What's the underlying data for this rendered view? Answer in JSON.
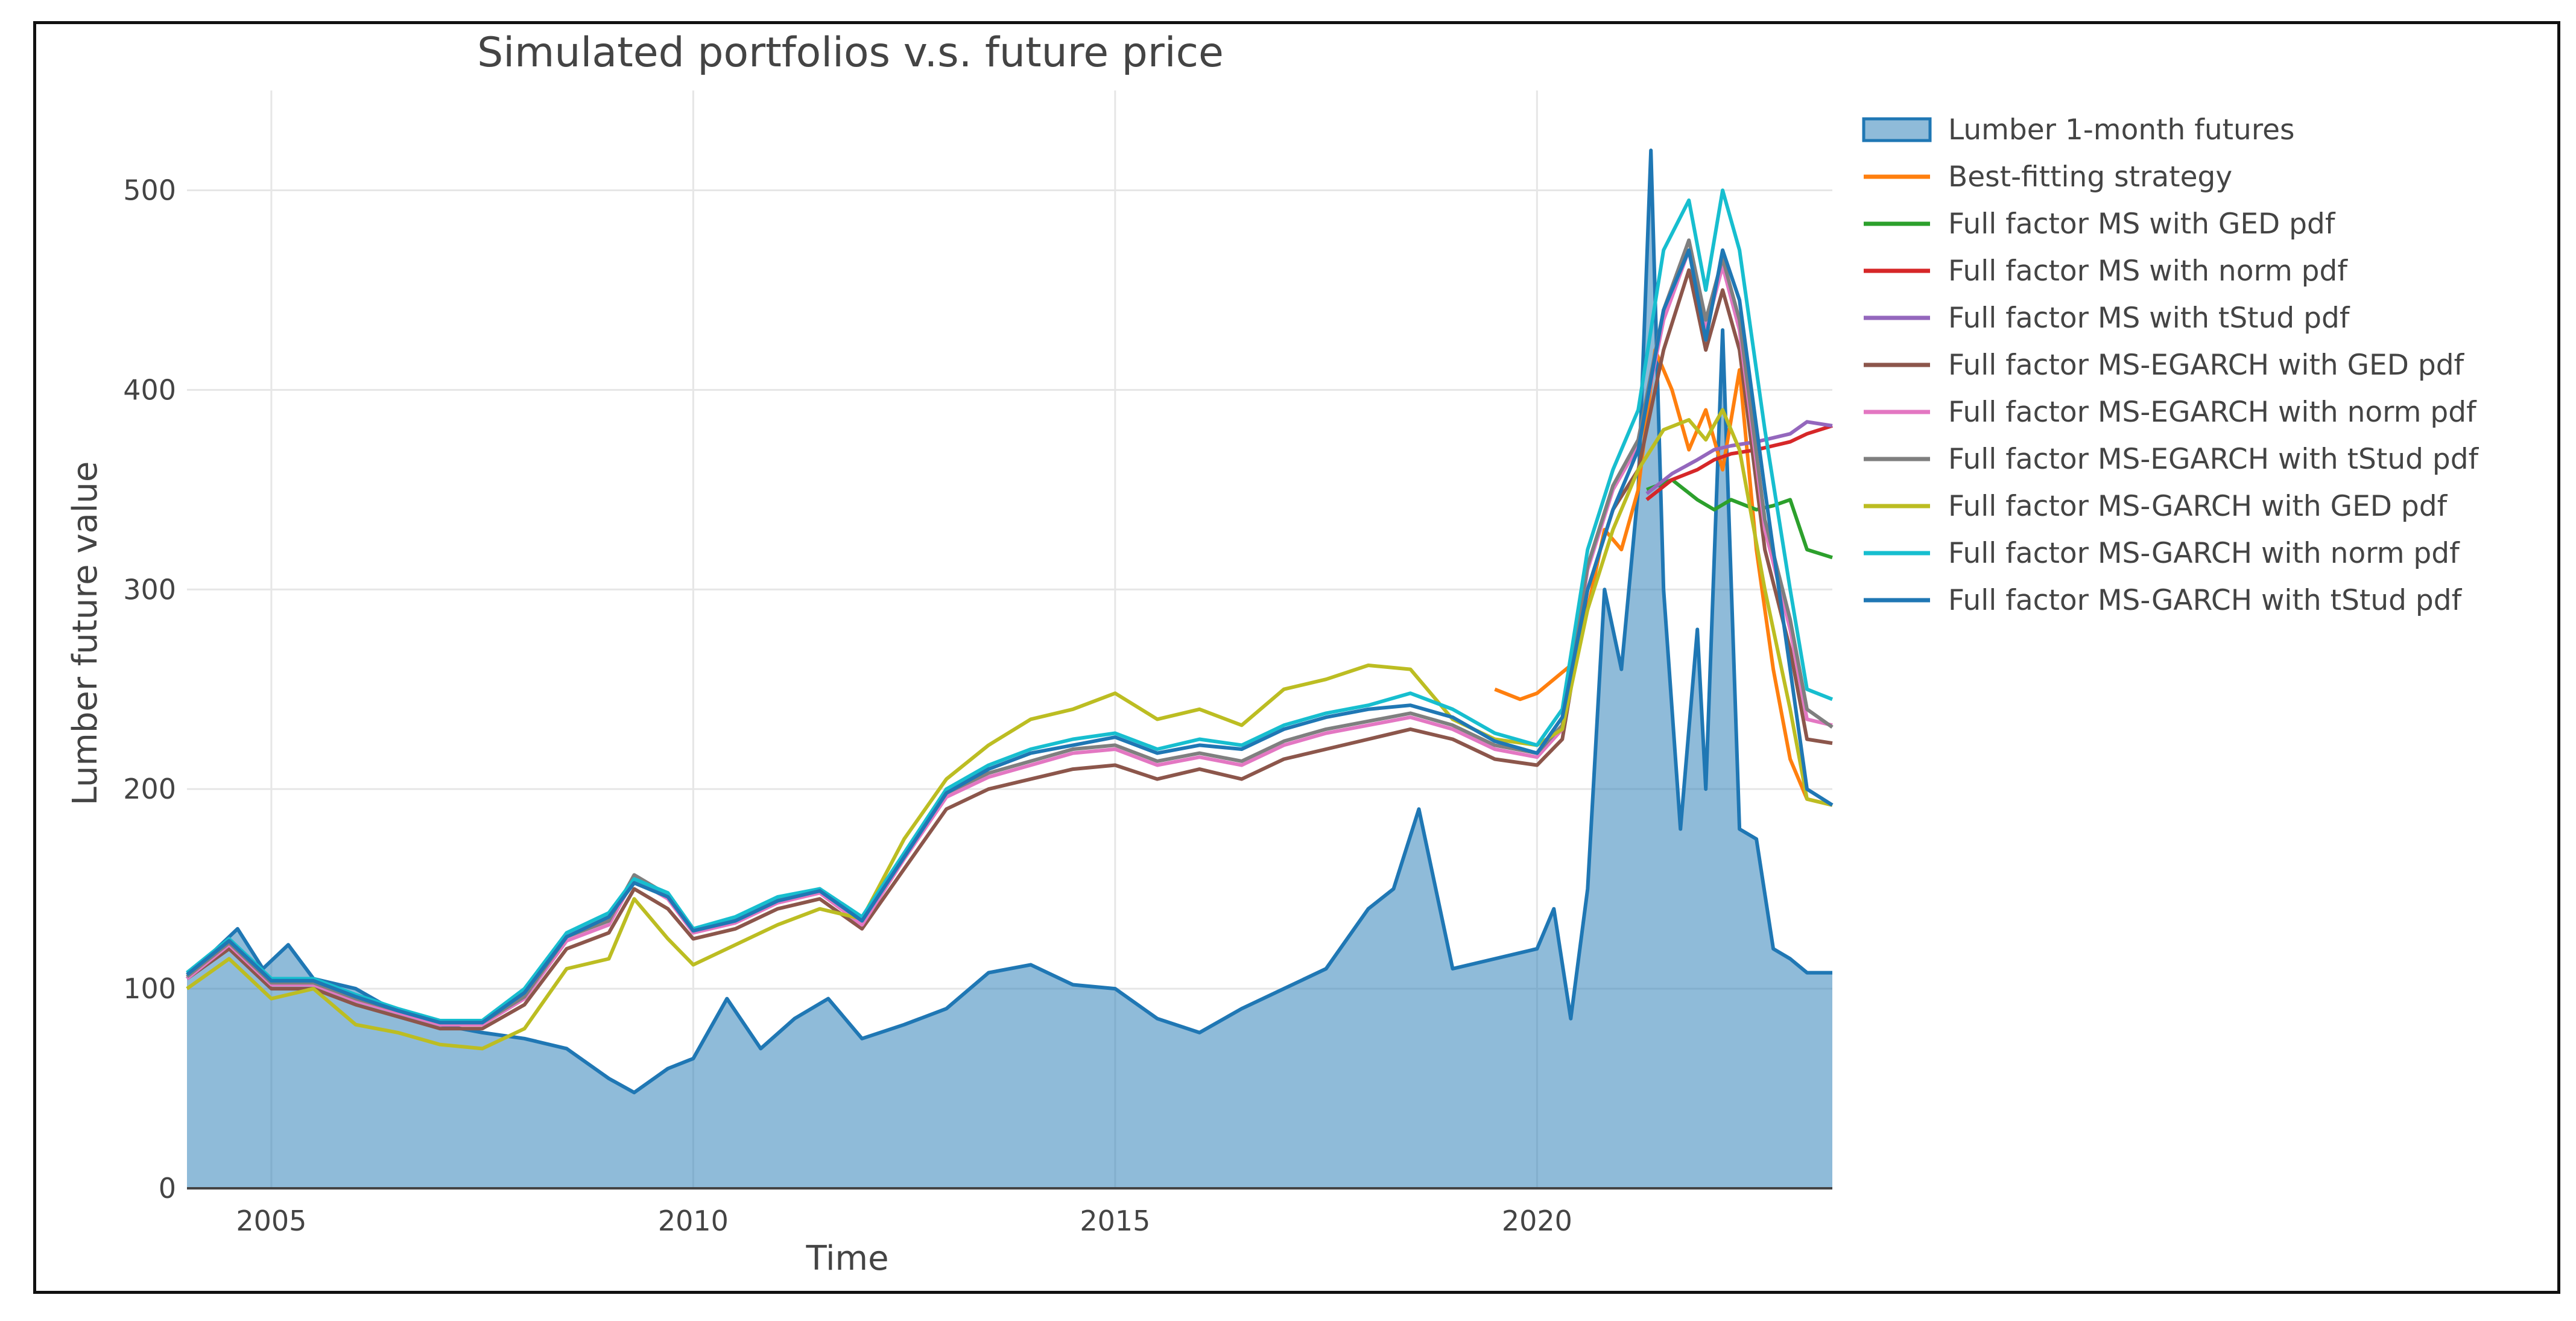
{
  "chart_data": {
    "type": "line",
    "title": "Simulated portfolios v.s. future price",
    "xlabel": "Time",
    "ylabel": "Lumber future value",
    "xlim": [
      2004.0,
      2023.5
    ],
    "ylim": [
      0,
      550
    ],
    "xticks": [
      2005,
      2010,
      2015,
      2020
    ],
    "yticks": [
      0,
      100,
      200,
      300,
      400,
      500
    ],
    "grid": true,
    "legend_position": "right",
    "series": [
      {
        "name": "Lumber 1-month futures",
        "color": "#1f77b4",
        "style": "area",
        "x": [
          2004.0,
          2004.3,
          2004.6,
          2004.9,
          2005.2,
          2005.5,
          2006.0,
          2006.5,
          2007.0,
          2007.5,
          2008.0,
          2008.5,
          2009.0,
          2009.3,
          2009.7,
          2010.0,
          2010.4,
          2010.8,
          2011.2,
          2011.6,
          2012.0,
          2012.5,
          2013.0,
          2013.5,
          2014.0,
          2014.5,
          2015.0,
          2015.5,
          2016.0,
          2016.5,
          2017.0,
          2017.5,
          2018.0,
          2018.3,
          2018.6,
          2019.0,
          2019.5,
          2020.0,
          2020.2,
          2020.4,
          2020.6,
          2020.8,
          2021.0,
          2021.2,
          2021.35,
          2021.5,
          2021.7,
          2021.9,
          2022.0,
          2022.2,
          2022.4,
          2022.6,
          2022.8,
          2023.0,
          2023.2,
          2023.5
        ],
        "values": [
          105,
          118,
          130,
          110,
          122,
          105,
          100,
          88,
          82,
          78,
          75,
          70,
          55,
          48,
          60,
          65,
          95,
          70,
          85,
          95,
          75,
          82,
          90,
          108,
          112,
          102,
          100,
          85,
          78,
          90,
          100,
          110,
          140,
          150,
          190,
          110,
          115,
          120,
          140,
          85,
          150,
          300,
          260,
          350,
          520,
          300,
          180,
          280,
          200,
          430,
          180,
          175,
          120,
          115,
          108,
          108
        ]
      },
      {
        "name": "Best-fitting strategy",
        "color": "#ff7f0e",
        "x": [
          2019.5,
          2019.8,
          2020.0,
          2020.2,
          2020.4,
          2020.6,
          2020.8,
          2021.0,
          2021.2,
          2021.4,
          2021.6,
          2021.8,
          2022.0,
          2022.2,
          2022.4,
          2022.6,
          2022.8,
          2023.0,
          2023.2,
          2023.5
        ],
        "values": [
          250,
          245,
          248,
          255,
          262,
          290,
          330,
          320,
          350,
          420,
          400,
          370,
          390,
          360,
          410,
          320,
          260,
          215,
          195,
          192
        ]
      },
      {
        "name": "Full factor MS with GED pdf",
        "color": "#2ca02c",
        "x": [
          2021.3,
          2021.6,
          2021.9,
          2022.1,
          2022.3,
          2022.6,
          2022.8,
          2023.0,
          2023.2,
          2023.5
        ],
        "values": [
          350,
          355,
          345,
          340,
          345,
          340,
          342,
          345,
          320,
          316
        ]
      },
      {
        "name": "Full factor MS with norm pdf",
        "color": "#d62728",
        "x": [
          2021.3,
          2021.6,
          2021.9,
          2022.1,
          2022.3,
          2022.6,
          2022.8,
          2023.0,
          2023.2,
          2023.5
        ],
        "values": [
          345,
          355,
          360,
          365,
          368,
          370,
          372,
          374,
          378,
          382
        ]
      },
      {
        "name": "Full factor MS with tStud pdf",
        "color": "#9467bd",
        "x": [
          2021.3,
          2021.6,
          2021.9,
          2022.1,
          2022.3,
          2022.6,
          2022.8,
          2023.0,
          2023.2,
          2023.5
        ],
        "values": [
          348,
          358,
          365,
          370,
          372,
          374,
          376,
          378,
          384,
          382
        ]
      },
      {
        "name": "Full factor MS-EGARCH with GED pdf",
        "color": "#8c564b",
        "x": [
          2004.0,
          2004.5,
          2005.0,
          2005.5,
          2006.0,
          2006.5,
          2007.0,
          2007.5,
          2008.0,
          2008.5,
          2009.0,
          2009.3,
          2009.7,
          2010.0,
          2010.5,
          2011.0,
          2011.5,
          2012.0,
          2012.5,
          2013.0,
          2013.5,
          2014.0,
          2014.5,
          2015.0,
          2015.5,
          2016.0,
          2016.5,
          2017.0,
          2017.5,
          2018.0,
          2018.5,
          2019.0,
          2019.5,
          2020.0,
          2020.3,
          2020.6,
          2020.9,
          2021.2,
          2021.5,
          2021.8,
          2022.0,
          2022.2,
          2022.4,
          2022.7,
          2023.0,
          2023.2,
          2023.5
        ],
        "values": [
          105,
          120,
          100,
          100,
          92,
          86,
          80,
          80,
          92,
          120,
          128,
          150,
          140,
          125,
          130,
          140,
          145,
          130,
          160,
          190,
          200,
          205,
          210,
          212,
          205,
          210,
          205,
          215,
          220,
          225,
          230,
          225,
          215,
          212,
          225,
          300,
          340,
          360,
          420,
          460,
          420,
          450,
          420,
          320,
          270,
          225,
          223
        ]
      },
      {
        "name": "Full factor MS-EGARCH with norm pdf",
        "color": "#e377c2",
        "x": [
          2004.0,
          2004.5,
          2005.0,
          2005.5,
          2006.0,
          2006.5,
          2007.0,
          2007.5,
          2008.0,
          2008.5,
          2009.0,
          2009.3,
          2009.7,
          2010.0,
          2010.5,
          2011.0,
          2011.5,
          2012.0,
          2012.5,
          2013.0,
          2013.5,
          2014.0,
          2014.5,
          2015.0,
          2015.5,
          2016.0,
          2016.5,
          2017.0,
          2017.5,
          2018.0,
          2018.5,
          2019.0,
          2019.5,
          2020.0,
          2020.3,
          2020.6,
          2020.9,
          2021.2,
          2021.5,
          2021.8,
          2022.0,
          2022.2,
          2022.4,
          2022.7,
          2023.0,
          2023.2,
          2023.5
        ],
        "values": [
          105,
          122,
          102,
          102,
          94,
          88,
          82,
          82,
          95,
          124,
          132,
          155,
          145,
          128,
          133,
          143,
          148,
          132,
          165,
          196,
          206,
          212,
          218,
          220,
          212,
          216,
          212,
          222,
          228,
          232,
          236,
          230,
          220,
          216,
          230,
          310,
          350,
          372,
          435,
          470,
          430,
          462,
          430,
          330,
          280,
          235,
          232
        ]
      },
      {
        "name": "Full factor MS-EGARCH with tStud pdf",
        "color": "#7f7f7f",
        "x": [
          2004.0,
          2004.5,
          2005.0,
          2005.5,
          2006.0,
          2006.5,
          2007.0,
          2007.5,
          2008.0,
          2008.5,
          2009.0,
          2009.3,
          2009.7,
          2010.0,
          2010.5,
          2011.0,
          2011.5,
          2012.0,
          2012.5,
          2013.0,
          2013.5,
          2014.0,
          2014.5,
          2015.0,
          2015.5,
          2016.0,
          2016.5,
          2017.0,
          2017.5,
          2018.0,
          2018.5,
          2019.0,
          2019.5,
          2020.0,
          2020.3,
          2020.6,
          2020.9,
          2021.2,
          2021.5,
          2021.8,
          2022.0,
          2022.2,
          2022.4,
          2022.7,
          2023.0,
          2023.2,
          2023.5
        ],
        "values": [
          106,
          123,
          103,
          103,
          95,
          89,
          83,
          83,
          96,
          126,
          134,
          157,
          147,
          130,
          135,
          145,
          150,
          134,
          167,
          198,
          208,
          214,
          220,
          222,
          214,
          218,
          214,
          224,
          230,
          234,
          238,
          232,
          222,
          218,
          232,
          312,
          352,
          375,
          440,
          475,
          435,
          466,
          435,
          335,
          285,
          240,
          231
        ]
      },
      {
        "name": "Full factor MS-GARCH with GED pdf",
        "color": "#bcbd22",
        "x": [
          2004.0,
          2004.5,
          2005.0,
          2005.5,
          2006.0,
          2006.5,
          2007.0,
          2007.5,
          2008.0,
          2008.5,
          2009.0,
          2009.3,
          2009.7,
          2010.0,
          2010.5,
          2011.0,
          2011.5,
          2012.0,
          2012.5,
          2013.0,
          2013.5,
          2014.0,
          2014.5,
          2015.0,
          2015.5,
          2016.0,
          2016.5,
          2017.0,
          2017.5,
          2018.0,
          2018.5,
          2019.0,
          2019.5,
          2020.0,
          2020.3,
          2020.6,
          2020.9,
          2021.2,
          2021.5,
          2021.8,
          2022.0,
          2022.2,
          2022.4,
          2022.7,
          2023.0,
          2023.2,
          2023.5
        ],
        "values": [
          100,
          115,
          95,
          100,
          82,
          78,
          72,
          70,
          80,
          110,
          115,
          145,
          125,
          112,
          122,
          132,
          140,
          135,
          175,
          205,
          222,
          235,
          240,
          248,
          235,
          240,
          232,
          250,
          255,
          262,
          260,
          235,
          225,
          222,
          230,
          290,
          330,
          360,
          380,
          385,
          375,
          390,
          370,
          300,
          240,
          195,
          192
        ]
      },
      {
        "name": "Full factor MS-GARCH with norm pdf",
        "color": "#17becf",
        "x": [
          2004.0,
          2004.5,
          2005.0,
          2005.5,
          2006.0,
          2006.5,
          2007.0,
          2007.5,
          2008.0,
          2008.5,
          2009.0,
          2009.3,
          2009.7,
          2010.0,
          2010.5,
          2011.0,
          2011.5,
          2012.0,
          2012.5,
          2013.0,
          2013.5,
          2014.0,
          2014.5,
          2015.0,
          2015.5,
          2016.0,
          2016.5,
          2017.0,
          2017.5,
          2018.0,
          2018.5,
          2019.0,
          2019.5,
          2020.0,
          2020.3,
          2020.6,
          2020.9,
          2021.2,
          2021.5,
          2021.8,
          2022.0,
          2022.2,
          2022.4,
          2022.7,
          2023.0,
          2023.2,
          2023.5
        ],
        "values": [
          108,
          125,
          105,
          105,
          97,
          90,
          84,
          84,
          100,
          128,
          138,
          155,
          148,
          130,
          136,
          146,
          150,
          136,
          168,
          200,
          212,
          220,
          225,
          228,
          220,
          225,
          222,
          232,
          238,
          242,
          248,
          240,
          228,
          222,
          240,
          320,
          360,
          390,
          470,
          495,
          450,
          500,
          470,
          380,
          300,
          250,
          245
        ]
      },
      {
        "name": "Full factor MS-GARCH with tStud pdf",
        "color": "#1f77b4",
        "x": [
          2004.0,
          2004.5,
          2005.0,
          2005.5,
          2006.0,
          2006.5,
          2007.0,
          2007.5,
          2008.0,
          2008.5,
          2009.0,
          2009.3,
          2009.7,
          2010.0,
          2010.5,
          2011.0,
          2011.5,
          2012.0,
          2012.5,
          2013.0,
          2013.5,
          2014.0,
          2014.5,
          2015.0,
          2015.5,
          2016.0,
          2016.5,
          2017.0,
          2017.5,
          2018.0,
          2018.5,
          2019.0,
          2019.5,
          2020.0,
          2020.3,
          2020.6,
          2020.9,
          2021.2,
          2021.5,
          2021.8,
          2022.0,
          2022.2,
          2022.4,
          2022.7,
          2023.0,
          2023.2,
          2023.5
        ],
        "values": [
          107,
          124,
          104,
          104,
          96,
          89,
          83,
          83,
          98,
          126,
          136,
          153,
          146,
          129,
          134,
          144,
          149,
          134,
          166,
          198,
          210,
          218,
          222,
          226,
          218,
          222,
          220,
          230,
          236,
          240,
          242,
          236,
          224,
          218,
          236,
          300,
          340,
          370,
          440,
          470,
          425,
          470,
          445,
          350,
          260,
          200,
          192
        ]
      }
    ]
  }
}
